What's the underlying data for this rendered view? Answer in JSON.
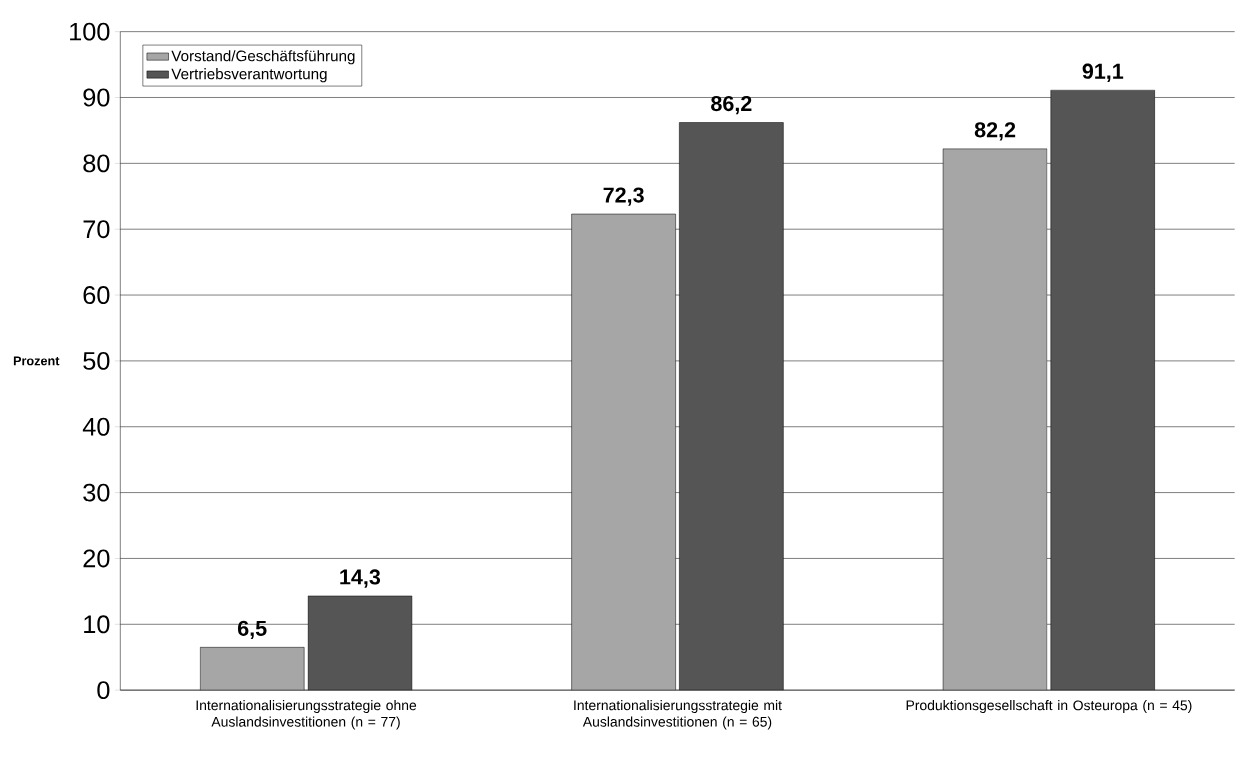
{
  "chart_data": {
    "type": "bar",
    "ylabel": "Prozent",
    "categories": [
      "Internationalisierungsstrategie ohne Auslandsinvestitionen (n = 77)",
      "Internationalisierungsstrategie mit Auslandsinvestitionen (n = 65)",
      "Produktionsgesellschaft in Osteuropa (n = 45)"
    ],
    "series": [
      {
        "name": "Vorstand/Geschäftsführung",
        "color": "#a6a6a6",
        "values": [
          6.5,
          72.3,
          82.2
        ],
        "value_labels": [
          "6,5",
          "72,3",
          "82,2"
        ]
      },
      {
        "name": "Vertriebsverantwortung",
        "color": "#555555",
        "values": [
          14.3,
          86.2,
          91.1
        ],
        "value_labels": [
          "14,3",
          "86,2",
          "91,1"
        ]
      }
    ],
    "ylim": [
      0,
      100
    ],
    "yticks": [
      0,
      10,
      20,
      30,
      40,
      50,
      60,
      70,
      80,
      90,
      100
    ],
    "grid": "y",
    "legend": "top left"
  }
}
